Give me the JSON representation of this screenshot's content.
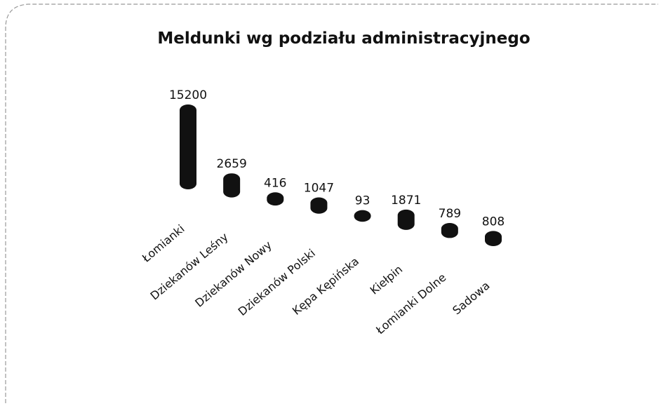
{
  "chart_data": {
    "type": "bar",
    "title": "Meldunki wg podziału administracyjnego",
    "categories": [
      "Łomianki",
      "Dziekanów Leśny",
      "Dziekanów Nowy",
      "Dziekanów Polski",
      "Kępa Kępińska",
      "Kiełpin",
      "Łomianki Dolne",
      "Sadowa"
    ],
    "values": [
      15200,
      2659,
      416,
      1047,
      93,
      1871,
      789,
      808
    ],
    "color": "#111111"
  }
}
